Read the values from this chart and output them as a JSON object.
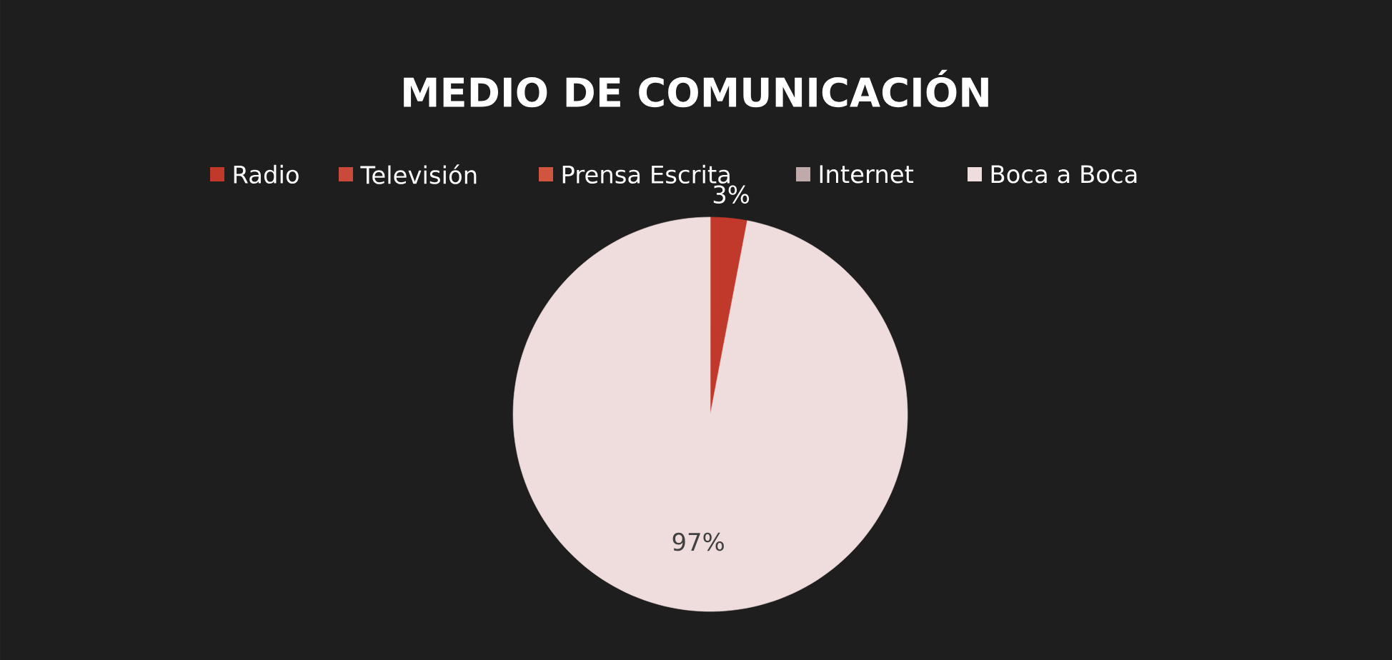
{
  "chart_data": {
    "type": "pie",
    "title": "MEDIO DE COMUNICACIÓN",
    "categories": [
      "Radio",
      "Televisión",
      "Prensa Escrita",
      "Internet",
      "Boca a Boca"
    ],
    "values": [
      3,
      0,
      0,
      0,
      97
    ],
    "colors": [
      "#c0392b",
      "#c94a3a",
      "#cf553f",
      "#bfa9a9",
      "#efdcdc"
    ],
    "value_labels": [
      "3%",
      null,
      null,
      null,
      "97%"
    ],
    "legend": "top"
  }
}
